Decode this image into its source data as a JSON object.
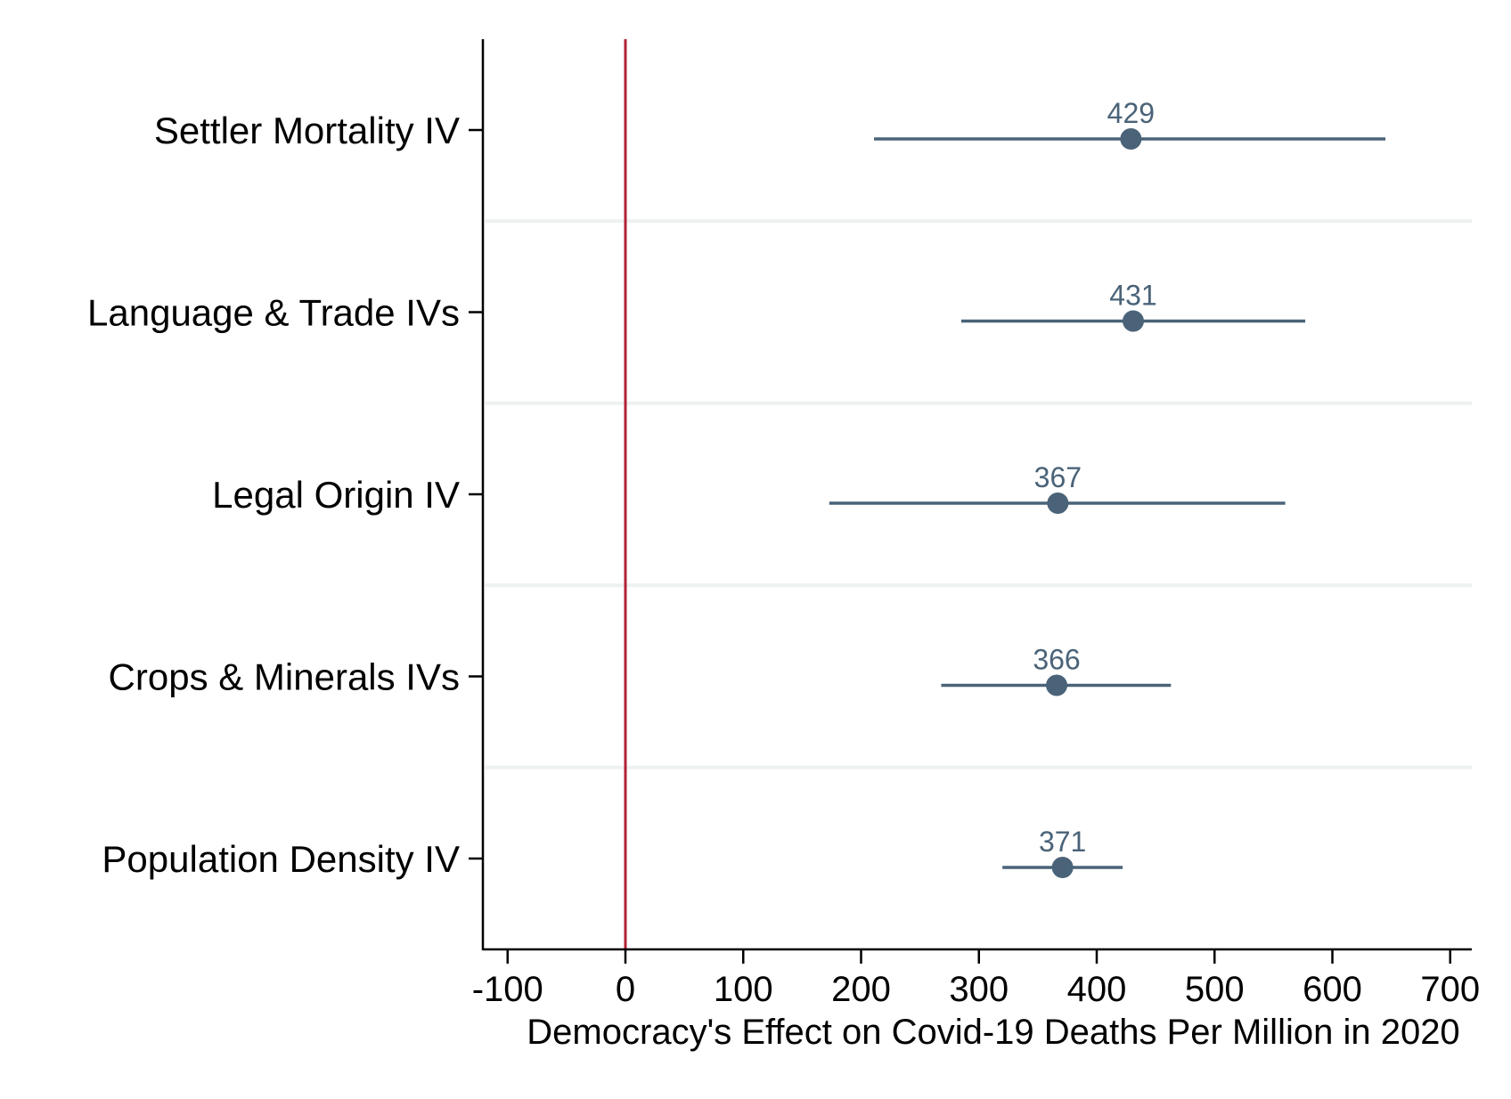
{
  "chart_data": {
    "type": "scatter",
    "subtype": "coefficient-plot-with-confidence-intervals",
    "title": "",
    "xlabel": "Democracy's Effect on Covid-19 Deaths Per Million in 2020",
    "ylabel": "",
    "xlim": [
      -120,
      720
    ],
    "xticks": [
      -100,
      0,
      100,
      200,
      300,
      400,
      500,
      600,
      700
    ],
    "xtick_labels": [
      "-100",
      "0",
      "100",
      "200",
      "300",
      "400",
      "500",
      "600",
      "700"
    ],
    "reference_line": {
      "x": 0,
      "color": "#b22234"
    },
    "categories": [
      "Settler Mortality IV",
      "Language & Trade IVs",
      "Legal Origin IV",
      "Crops & Minerals IVs",
      "Population Density IV"
    ],
    "estimates": [
      429,
      431,
      367,
      366,
      371
    ],
    "estimate_labels": [
      "429",
      "431",
      "367",
      "366",
      "371"
    ],
    "ci_lower": [
      211,
      285,
      173,
      268,
      320
    ],
    "ci_upper": [
      645,
      577,
      560,
      463,
      422
    ],
    "grid": "horizontal separators between categories",
    "legend": "none",
    "colors": {
      "series": "#4a6378",
      "reference": "#b22234",
      "separator": "#eef1f1",
      "axis": "#000000"
    }
  }
}
